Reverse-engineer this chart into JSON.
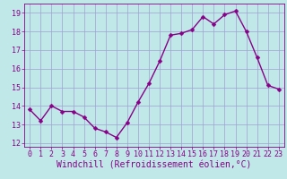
{
  "x": [
    0,
    1,
    2,
    3,
    4,
    5,
    6,
    7,
    8,
    9,
    10,
    11,
    12,
    13,
    14,
    15,
    16,
    17,
    18,
    19,
    20,
    21,
    22,
    23
  ],
  "y": [
    13.8,
    13.2,
    14.0,
    13.7,
    13.7,
    13.4,
    12.8,
    12.6,
    12.3,
    13.1,
    14.2,
    15.2,
    16.4,
    17.8,
    17.9,
    18.1,
    18.8,
    18.4,
    18.9,
    19.1,
    18.0,
    16.6,
    15.1,
    14.9
  ],
  "line_color": "#880088",
  "marker_color": "#880088",
  "bg_color": "#c0e8e8",
  "grid_color": "#a0a0d0",
  "xlabel": "Windchill (Refroidissement éolien,°C)",
  "xlabel_color": "#880088",
  "ylim": [
    11.8,
    19.5
  ],
  "xlim": [
    -0.5,
    23.5
  ],
  "yticks": [
    12,
    13,
    14,
    15,
    16,
    17,
    18,
    19
  ],
  "xticks": [
    0,
    1,
    2,
    3,
    4,
    5,
    6,
    7,
    8,
    9,
    10,
    11,
    12,
    13,
    14,
    15,
    16,
    17,
    18,
    19,
    20,
    21,
    22,
    23
  ],
  "tick_color": "#880088",
  "tick_fontsize": 6,
  "xlabel_fontsize": 7,
  "marker_size": 2.5,
  "line_width": 1.0
}
